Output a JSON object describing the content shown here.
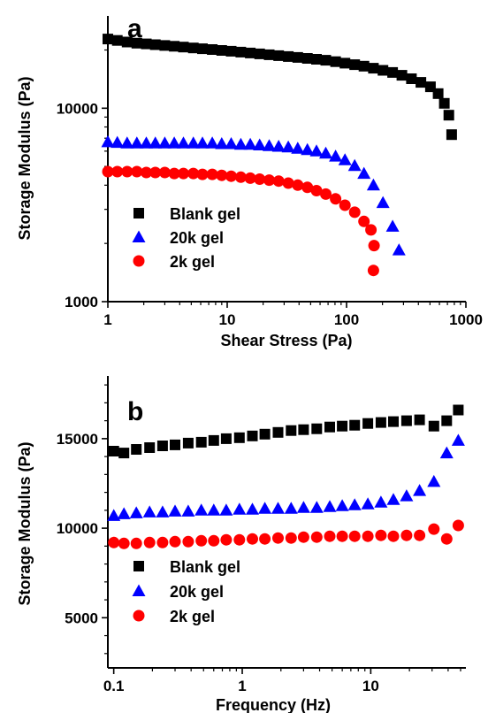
{
  "chart_data": [
    {
      "type": "scatter",
      "panel_label": "a",
      "xlabel": "Shear Stress (Pa)",
      "ylabel": "Storage Modulus (Pa)",
      "xscale": "log",
      "yscale": "log",
      "xlim": [
        1,
        1000
      ],
      "ylim": [
        1000,
        30000
      ],
      "xticks": [
        1,
        10,
        100,
        1000
      ],
      "xtick_labels": [
        "1",
        "10",
        "100",
        "1000"
      ],
      "yticks": [
        1000,
        10000
      ],
      "ytick_labels": [
        "1000",
        "10000"
      ],
      "grid": false,
      "legend_position": "bottom-left",
      "series": [
        {
          "name": "Blank gel",
          "marker": "square",
          "color": "#000000",
          "x": [
            1,
            1.2,
            1.45,
            1.75,
            2.1,
            2.5,
            3.0,
            3.6,
            4.3,
            5.2,
            6.2,
            7.5,
            9.0,
            10.8,
            13,
            15.6,
            18.7,
            22.5,
            27,
            32.5,
            39,
            47,
            56,
            67,
            81,
            97,
            117,
            140,
            168,
            202,
            243,
            291,
            350,
            420,
            505,
            585,
            660,
            720,
            760
          ],
          "y": [
            22800,
            22400,
            22000,
            21700,
            21500,
            21300,
            21100,
            20900,
            20700,
            20500,
            20300,
            20100,
            19900,
            19700,
            19500,
            19300,
            19100,
            18900,
            18700,
            18500,
            18300,
            18100,
            17900,
            17700,
            17400,
            17100,
            16800,
            16500,
            16100,
            15700,
            15300,
            14800,
            14200,
            13600,
            12900,
            11900,
            10600,
            9200,
            7300
          ]
        },
        {
          "name": "20k gel",
          "marker": "triangle",
          "color": "#0000ff",
          "x": [
            1,
            1.2,
            1.45,
            1.75,
            2.1,
            2.5,
            3.0,
            3.6,
            4.3,
            5.2,
            6.2,
            7.5,
            9.0,
            10.8,
            13,
            15.6,
            18.7,
            22.5,
            27,
            32.5,
            39,
            47,
            56,
            67,
            81,
            97,
            117,
            140,
            168,
            202,
            243,
            275
          ],
          "y": [
            6700,
            6650,
            6600,
            6600,
            6600,
            6600,
            6600,
            6600,
            6600,
            6600,
            6600,
            6600,
            6550,
            6550,
            6500,
            6500,
            6450,
            6400,
            6350,
            6300,
            6200,
            6100,
            6000,
            5850,
            5650,
            5400,
            5050,
            4600,
            4000,
            3250,
            2450,
            1850
          ]
        },
        {
          "name": "2k gel",
          "marker": "circle",
          "color": "#ff0000",
          "x": [
            1,
            1.2,
            1.45,
            1.75,
            2.1,
            2.5,
            3.0,
            3.6,
            4.3,
            5.2,
            6.2,
            7.5,
            9.0,
            10.8,
            13,
            15.6,
            18.7,
            22.5,
            27,
            32.5,
            39,
            47,
            56,
            67,
            81,
            97,
            117,
            140,
            160,
            170,
            168
          ],
          "y": [
            4700,
            4700,
            4700,
            4700,
            4650,
            4650,
            4650,
            4600,
            4600,
            4600,
            4550,
            4550,
            4500,
            4450,
            4400,
            4350,
            4300,
            4250,
            4200,
            4100,
            4000,
            3900,
            3750,
            3600,
            3400,
            3150,
            2900,
            2600,
            2350,
            1950,
            1450
          ]
        }
      ]
    },
    {
      "type": "scatter",
      "panel_label": "b",
      "xlabel": "Frequency (Hz)",
      "ylabel": "Storage Modulus (Pa)",
      "xscale": "log",
      "yscale": "linear",
      "xlim": [
        0.09,
        55
      ],
      "ylim": [
        2200,
        18500
      ],
      "xticks": [
        0.1,
        1,
        10
      ],
      "xtick_labels": [
        "0.1",
        "1",
        "10"
      ],
      "yticks": [
        5000,
        10000,
        15000
      ],
      "ytick_labels": [
        "5000",
        "10000",
        "15000"
      ],
      "grid": false,
      "legend_position": "bottom-left",
      "series": [
        {
          "name": "Blank gel",
          "marker": "square",
          "color": "#000000",
          "x": [
            0.1,
            0.12,
            0.15,
            0.19,
            0.24,
            0.3,
            0.38,
            0.48,
            0.6,
            0.75,
            0.95,
            1.2,
            1.5,
            1.9,
            2.4,
            3.0,
            3.8,
            4.8,
            6.0,
            7.5,
            9.5,
            12,
            15,
            19,
            24,
            31,
            39,
            48
          ],
          "y": [
            14300,
            14200,
            14400,
            14500,
            14600,
            14650,
            14750,
            14800,
            14900,
            15000,
            15050,
            15150,
            15250,
            15350,
            15450,
            15500,
            15550,
            15650,
            15700,
            15750,
            15850,
            15900,
            15950,
            16000,
            16050,
            15700,
            16000,
            16600
          ]
        },
        {
          "name": "20k gel",
          "marker": "triangle",
          "color": "#0000ff",
          "x": [
            0.1,
            0.12,
            0.15,
            0.19,
            0.24,
            0.3,
            0.38,
            0.48,
            0.6,
            0.75,
            0.95,
            1.2,
            1.5,
            1.9,
            2.4,
            3.0,
            3.8,
            4.8,
            6.0,
            7.5,
            9.5,
            12,
            15,
            19,
            24,
            31,
            39,
            48
          ],
          "y": [
            10700,
            10800,
            10850,
            10900,
            10900,
            10950,
            10950,
            11000,
            11000,
            11000,
            11050,
            11050,
            11100,
            11100,
            11100,
            11150,
            11150,
            11200,
            11250,
            11300,
            11350,
            11450,
            11600,
            11800,
            12100,
            12600,
            14200,
            14900
          ]
        },
        {
          "name": "2k gel",
          "marker": "circle",
          "color": "#ff0000",
          "x": [
            0.1,
            0.12,
            0.15,
            0.19,
            0.24,
            0.3,
            0.38,
            0.48,
            0.6,
            0.75,
            0.95,
            1.2,
            1.5,
            1.9,
            2.4,
            3.0,
            3.8,
            4.8,
            6.0,
            7.5,
            9.5,
            12,
            15,
            19,
            24,
            31,
            39,
            48
          ],
          "y": [
            9200,
            9150,
            9150,
            9200,
            9200,
            9250,
            9250,
            9300,
            9300,
            9350,
            9350,
            9400,
            9400,
            9450,
            9450,
            9500,
            9500,
            9550,
            9550,
            9550,
            9550,
            9600,
            9550,
            9600,
            9600,
            9950,
            9400,
            10150
          ]
        }
      ]
    }
  ]
}
